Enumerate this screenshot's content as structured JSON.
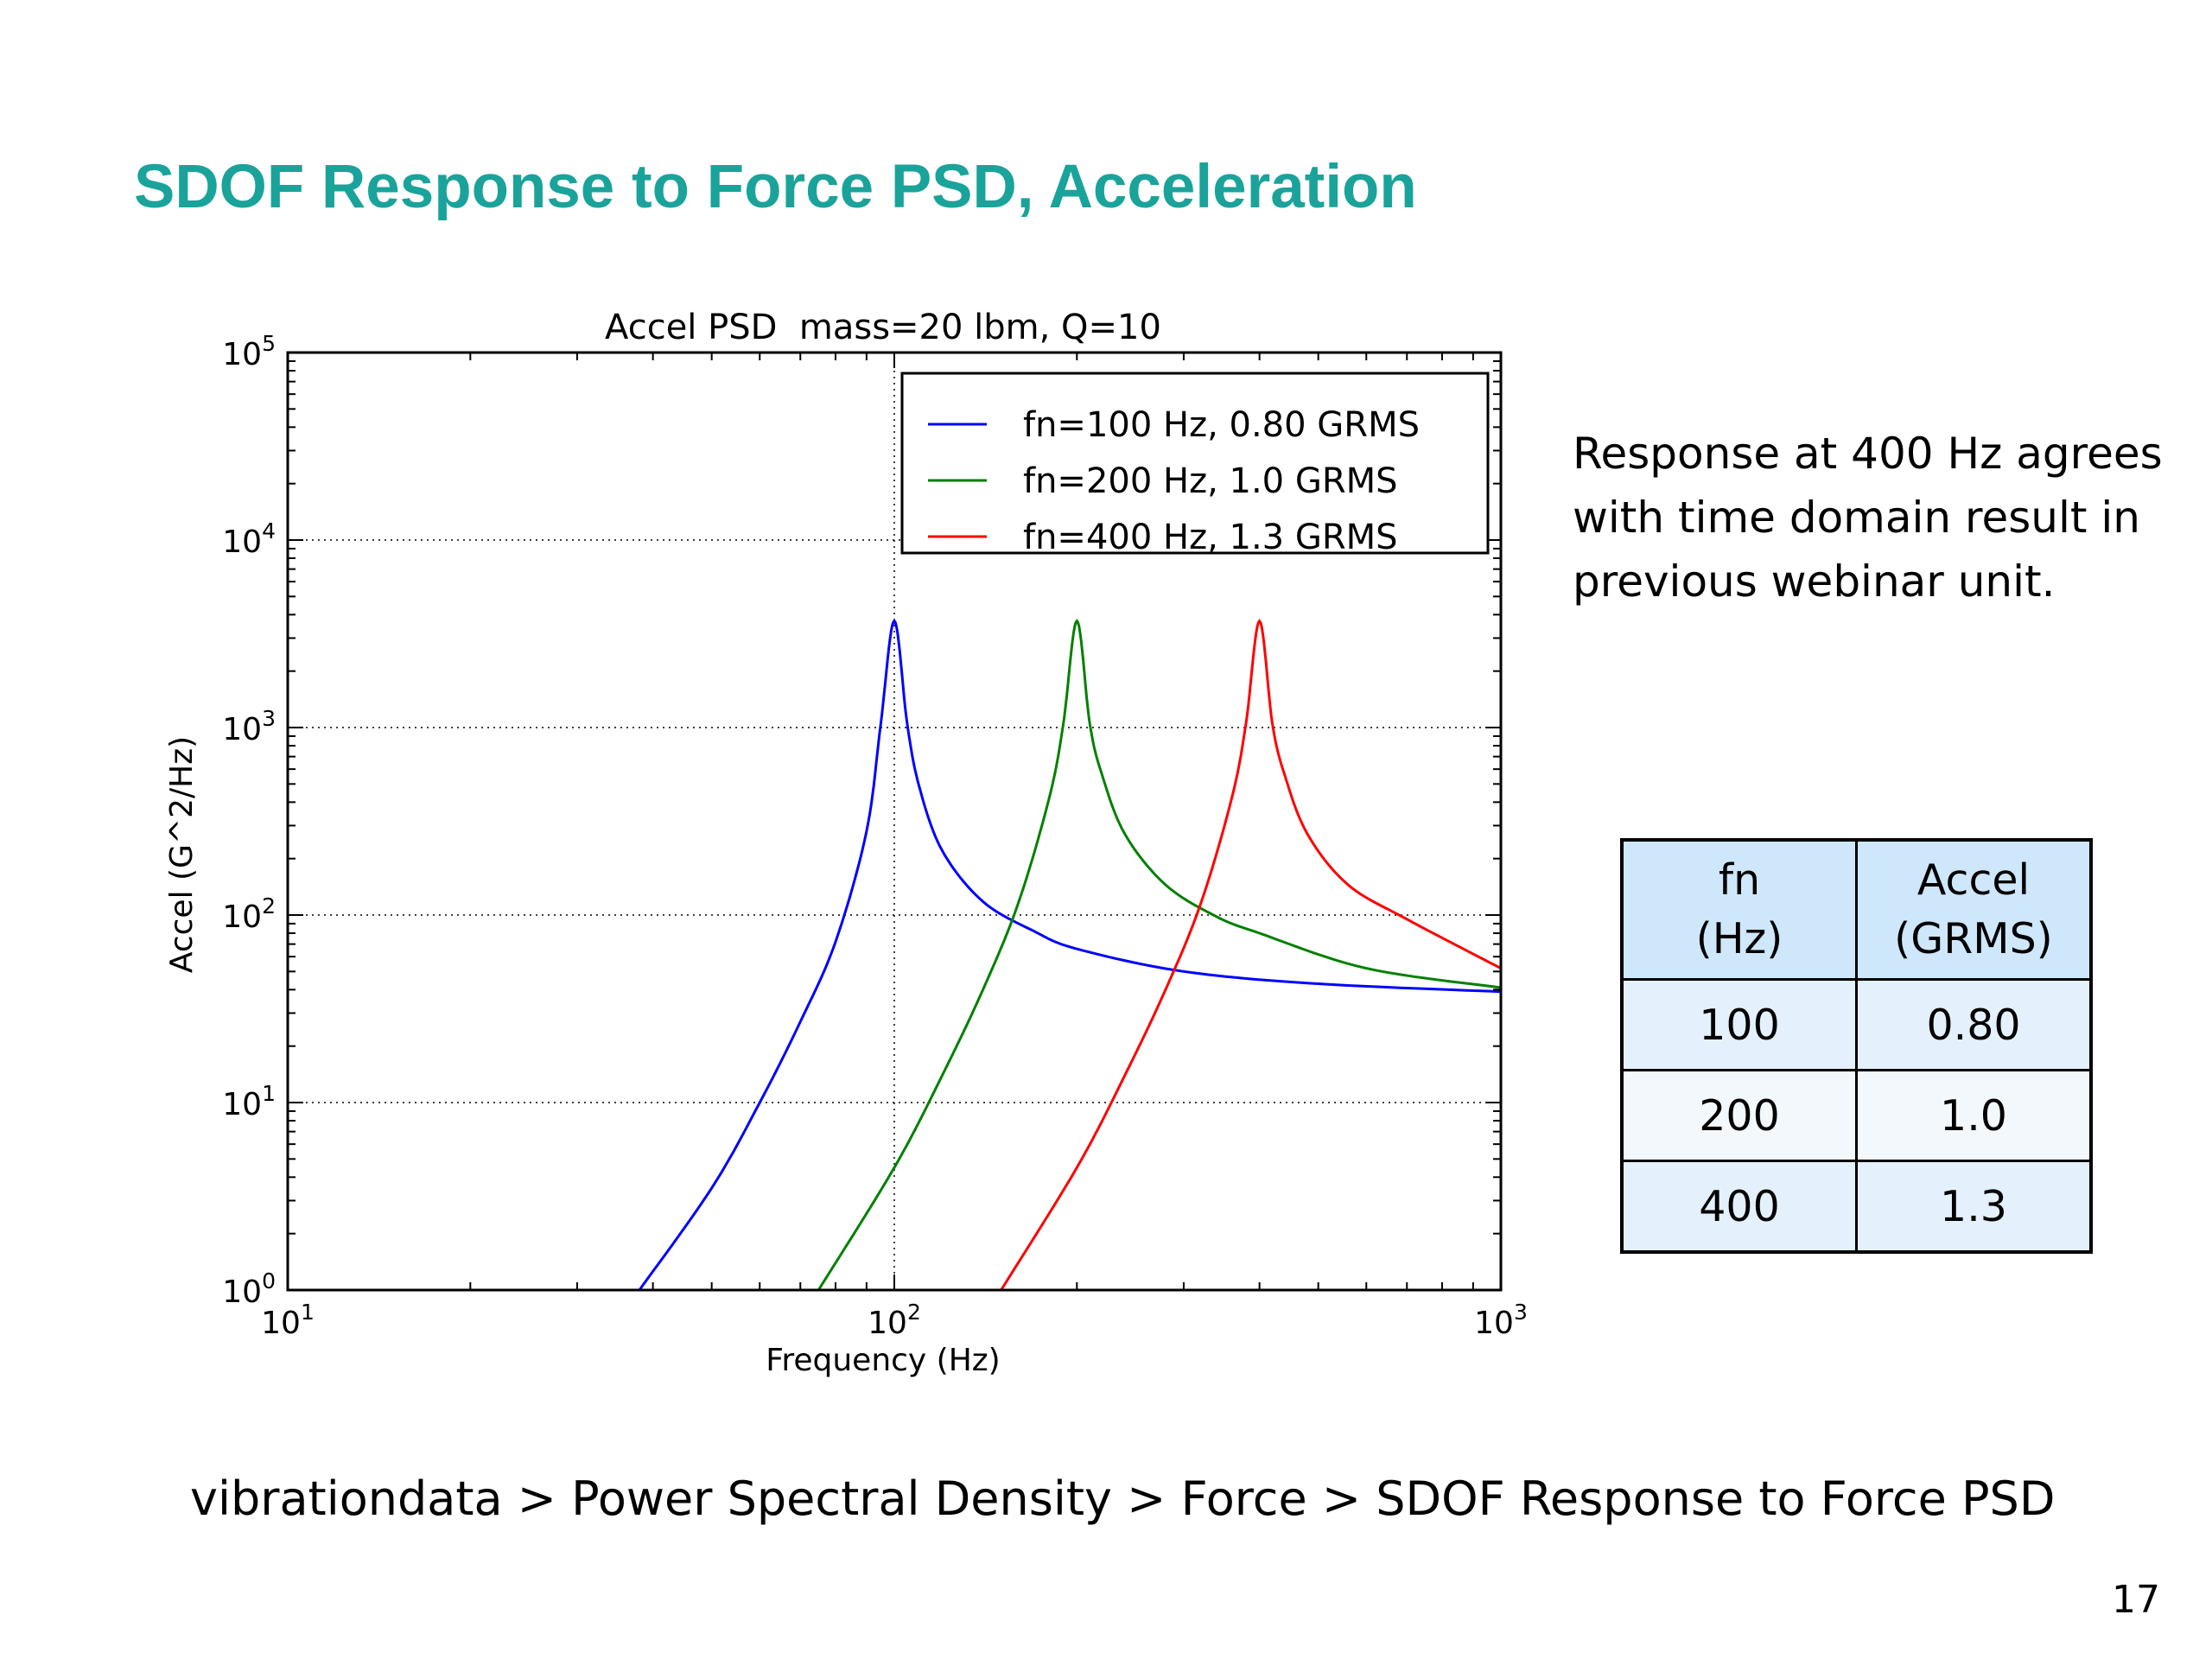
{
  "slide": {
    "title": "SDOF Response to Force PSD, Acceleration",
    "title_color": "#1aa39a",
    "note": "Response at 400 Hz agrees with time domain result in previous webinar unit.",
    "breadcrumb": "vibrationdata > Power Spectral Density > Force > SDOF Response to Force PSD",
    "page_number": "17"
  },
  "table": {
    "headers": [
      "fn\n(Hz)",
      "Accel\n(GRMS)"
    ],
    "rows": [
      [
        "100",
        "0.80"
      ],
      [
        "200",
        "1.0"
      ],
      [
        "400",
        "1.3"
      ]
    ],
    "header_color": "#cfe7fb"
  },
  "chart_data": {
    "type": "line",
    "title": "Accel PSD  mass=20 lbm, Q=10",
    "xlabel": "Frequency (Hz)",
    "ylabel": "Accel (G^2/Hz)",
    "xscale": "log",
    "yscale": "log",
    "xlim": [
      10,
      1000
    ],
    "ylim": [
      1,
      100000
    ],
    "x_ticks": [
      {
        "value": 10,
        "base": "10",
        "exp": "1"
      },
      {
        "value": 100,
        "base": "10",
        "exp": "2"
      },
      {
        "value": 1000,
        "base": "10",
        "exp": "3"
      }
    ],
    "y_ticks": [
      {
        "value": 1,
        "base": "10",
        "exp": "0"
      },
      {
        "value": 10,
        "base": "10",
        "exp": "1"
      },
      {
        "value": 100,
        "base": "10",
        "exp": "2"
      },
      {
        "value": 1000,
        "base": "10",
        "exp": "3"
      },
      {
        "value": 10000,
        "base": "10",
        "exp": "4"
      },
      {
        "value": 100000,
        "base": "10",
        "exp": "5"
      }
    ],
    "grid": true,
    "legend_position": "top-right",
    "series": [
      {
        "name": "fn=100 Hz, 0.80 GRMS",
        "color": "#0000ff",
        "x": [
          38,
          50,
          60,
          70,
          80,
          90,
          95,
          100,
          105,
          110,
          120,
          140,
          170,
          200,
          300,
          500,
          1000
        ],
        "y": [
          1,
          3.5,
          10,
          27,
          72,
          280,
          1050,
          3700,
          1050,
          480,
          220,
          118,
          82,
          66,
          50,
          43,
          39
        ]
      },
      {
        "name": "fn=200 Hz, 1.0 GRMS",
        "color": "#008000",
        "x": [
          75,
          100,
          120,
          140,
          160,
          180,
          190,
          200,
          210,
          220,
          240,
          280,
          340,
          400,
          600,
          1000
        ],
        "y": [
          1,
          4.5,
          14,
          40,
          115,
          420,
          1050,
          3700,
          1050,
          560,
          270,
          145,
          98,
          80,
          52,
          41
        ]
      },
      {
        "name": "fn=400 Hz, 1.3 GRMS",
        "color": "#ff0000",
        "x": [
          150,
          200,
          240,
          280,
          320,
          360,
          380,
          400,
          420,
          440,
          480,
          560,
          700,
          1000
        ],
        "y": [
          1,
          4.5,
          14,
          40,
          115,
          420,
          1050,
          3700,
          1050,
          560,
          270,
          145,
          95,
          52
        ]
      }
    ]
  }
}
